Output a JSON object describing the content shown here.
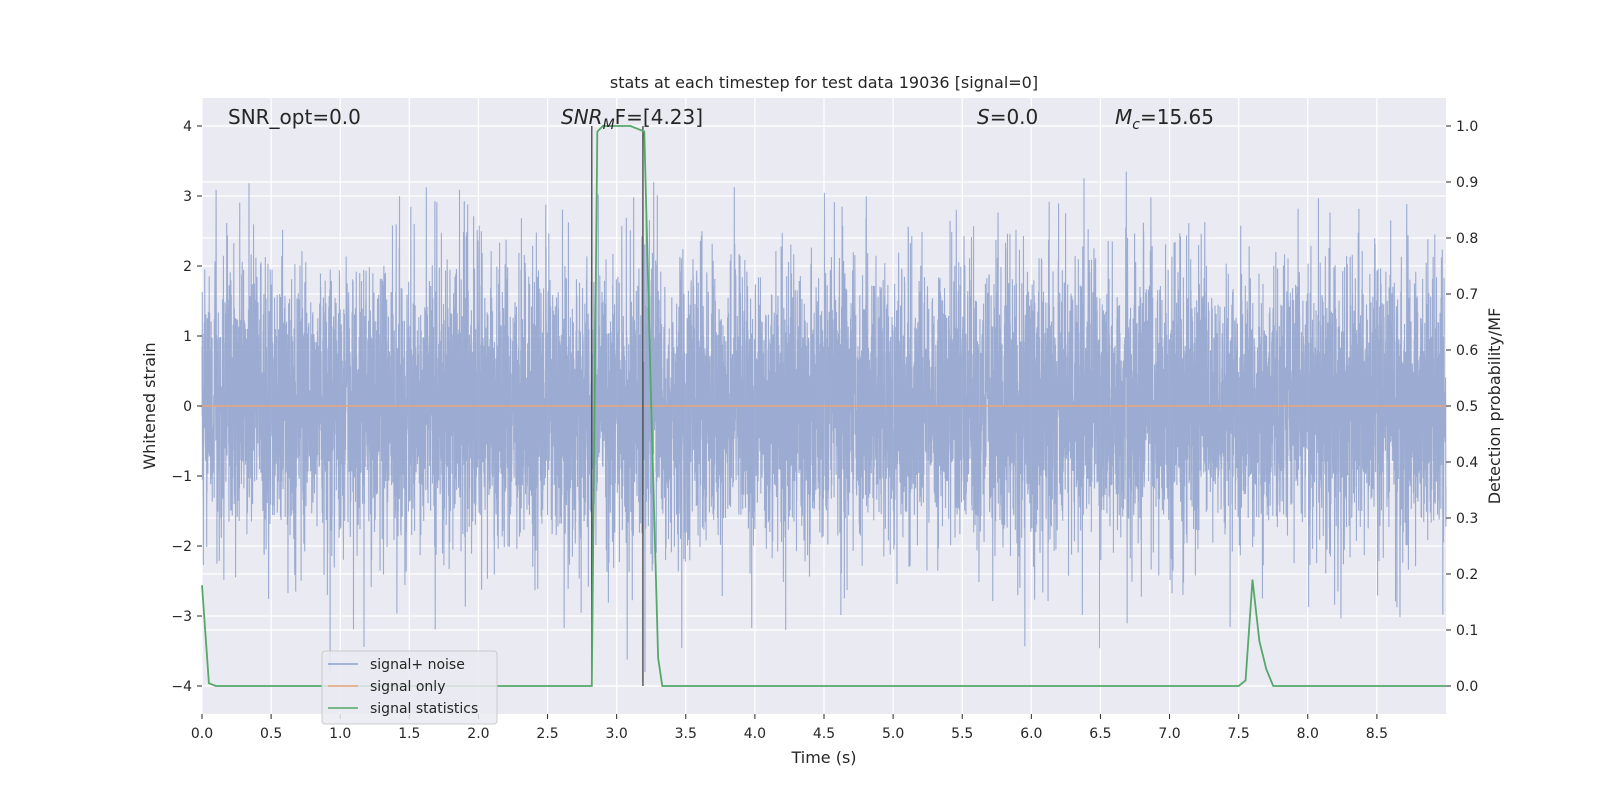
{
  "chart_data": {
    "type": "line",
    "title": "stats at each timestep for test data 19036 [signal=0]",
    "xlabel": "Time (s)",
    "ylabel": "Whitened strain",
    "ylabel_right": "Detection probability/MF",
    "xlim": [
      0.0,
      9.0
    ],
    "ylim": [
      -4.4,
      4.4
    ],
    "ylim_right": [
      -0.05,
      1.05
    ],
    "x_ticks": [
      0.0,
      0.5,
      1.0,
      1.5,
      2.0,
      2.5,
      3.0,
      3.5,
      4.0,
      4.5,
      5.0,
      5.5,
      6.0,
      6.5,
      7.0,
      7.5,
      8.0,
      8.5
    ],
    "x_tick_labels": [
      "0.0",
      "0.5",
      "1.0",
      "1.5",
      "2.0",
      "2.5",
      "3.0",
      "3.5",
      "4.0",
      "4.5",
      "5.0",
      "5.5",
      "6.0",
      "6.5",
      "7.0",
      "7.5",
      "8.0",
      "8.5"
    ],
    "y_ticks": [
      4,
      3,
      2,
      1,
      0,
      -1,
      -2,
      -3,
      -4
    ],
    "y_tick_labels": [
      "4",
      "3",
      "2",
      "1",
      "0",
      "−1",
      "−2",
      "−3",
      "−4"
    ],
    "y_ticks_right": [
      1.0,
      0.9,
      0.8,
      0.7,
      0.6,
      0.5,
      0.4,
      0.3,
      0.2,
      0.1,
      0.0
    ],
    "y_tick_labels_right": [
      "1.0",
      "0.9",
      "0.8",
      "0.7",
      "0.6",
      "0.5",
      "0.4",
      "0.3",
      "0.2",
      "0.1",
      "0.0"
    ],
    "grid": true,
    "legend_position": "bottom-left",
    "annotations": {
      "snr_opt": "SNR_opt=0.0",
      "snr_mf_sym": "SNR",
      "snr_mf_sub": "M",
      "snr_mf_rest": "F=[4.23]",
      "s_sym": "S",
      "s_rest": "=0.0",
      "mc_sym": "M",
      "mc_sub": "c",
      "mc_rest": "=15.65"
    },
    "vertical_lines": [
      2.82,
      3.19
    ],
    "series": [
      {
        "name": "signal+ noise",
        "color": "#8da0cb",
        "noise_amplitude_envelope": [
          -3.8,
          3.9
        ],
        "noise_sample_rate_hz": 1000,
        "note_values": "dense noisy strain trace around 0"
      },
      {
        "name": "signal only",
        "color": "#e8a57e",
        "x": [
          0.0,
          9.0
        ],
        "y": [
          0.0,
          0.0
        ]
      },
      {
        "name": "signal statistics",
        "color": "#55a868",
        "axis": "right",
        "x": [
          0.0,
          0.05,
          0.1,
          0.15,
          2.8,
          2.82,
          2.86,
          2.9,
          3.0,
          3.1,
          3.2,
          3.25,
          3.3,
          3.33,
          7.5,
          7.55,
          7.6,
          7.65,
          7.7,
          7.75,
          7.8,
          9.0
        ],
        "y": [
          0.18,
          0.005,
          0.0,
          0.0,
          0.0,
          0.0,
          0.99,
          1.0,
          1.0,
          1.0,
          0.99,
          0.5,
          0.05,
          0.0,
          0.0,
          0.01,
          0.19,
          0.08,
          0.03,
          0.0,
          0.0,
          0.0
        ]
      }
    ],
    "legend_series": [
      {
        "name": "signal+ noise",
        "color": "#8da0cb"
      },
      {
        "name": "signal only",
        "color": "#e8a57e"
      },
      {
        "name": "signal statistics",
        "color": "#55a868"
      }
    ]
  }
}
